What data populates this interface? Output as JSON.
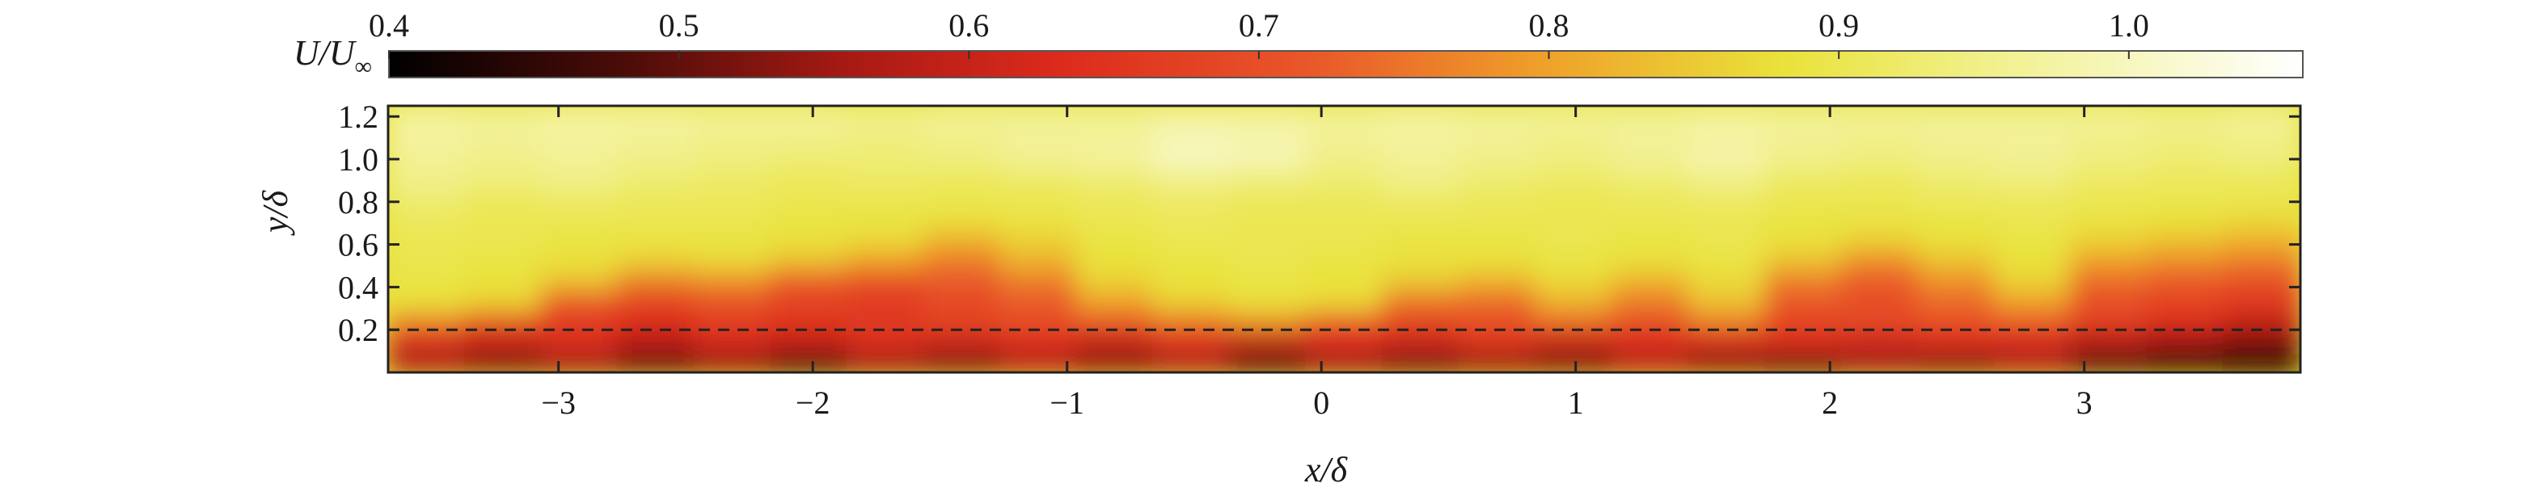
{
  "chart_data": {
    "type": "heatmap",
    "colorbar": {
      "label_main": "U/U",
      "label_sub": "∞",
      "range": [
        0.4,
        1.06
      ],
      "ticks": [
        0.4,
        0.5,
        0.6,
        0.7,
        0.8,
        0.9,
        1.0
      ],
      "tick_labels": [
        "0.4",
        "0.5",
        "0.6",
        "0.7",
        "0.8",
        "0.9",
        "1.0"
      ],
      "colormap": [
        {
          "v": 0.4,
          "color": "#000000"
        },
        {
          "v": 0.48,
          "color": "#4a0c08"
        },
        {
          "v": 0.56,
          "color": "#a91a14"
        },
        {
          "v": 0.63,
          "color": "#dc2a1c"
        },
        {
          "v": 0.72,
          "color": "#e9592a"
        },
        {
          "v": 0.8,
          "color": "#efa22a"
        },
        {
          "v": 0.88,
          "color": "#e9e23a"
        },
        {
          "v": 0.95,
          "color": "#f1f08a"
        },
        {
          "v": 1.06,
          "color": "#ffffff"
        }
      ]
    },
    "xlabel": "x/δ",
    "ylabel": "y/δ",
    "xlim": [
      -3.67,
      3.85
    ],
    "ylim": [
      0.0,
      1.25
    ],
    "xticks": [
      -3,
      -2,
      -1,
      0,
      1,
      2,
      3
    ],
    "xtick_labels": [
      "−3",
      "−2",
      "−1",
      "0",
      "1",
      "2",
      "3"
    ],
    "yticks": [
      0.2,
      0.4,
      0.6,
      0.8,
      1.0,
      1.2
    ],
    "ytick_labels": [
      "0.2",
      "0.4",
      "0.6",
      "0.8",
      "1.0",
      "1.2"
    ],
    "reference_line": {
      "y": 0.2,
      "style": "dashed",
      "color": "#222222"
    },
    "field": {
      "freestream_value": 0.9,
      "wall_value": 0.55,
      "interface_x": [
        -3.6,
        -3.3,
        -3.0,
        -2.7,
        -2.4,
        -2.1,
        -1.8,
        -1.5,
        -1.2,
        -0.9,
        -0.6,
        -0.3,
        0.0,
        0.3,
        0.6,
        0.9,
        1.2,
        1.5,
        1.8,
        2.1,
        2.4,
        2.7,
        3.0,
        3.3,
        3.6,
        3.85
      ],
      "interface_y": [
        0.27,
        0.25,
        0.35,
        0.45,
        0.42,
        0.45,
        0.52,
        0.6,
        0.52,
        0.38,
        0.28,
        0.25,
        0.22,
        0.33,
        0.36,
        0.28,
        0.4,
        0.3,
        0.5,
        0.55,
        0.47,
        0.38,
        0.55,
        0.5,
        0.6,
        0.62
      ],
      "rows": [
        [
          0.56,
          0.52,
          0.55,
          0.5,
          0.54,
          0.48,
          0.55,
          0.52,
          0.57,
          0.53,
          0.56,
          0.49,
          0.55,
          0.51,
          0.54,
          0.52,
          0.57,
          0.53,
          0.5,
          0.55,
          0.52,
          0.56,
          0.48,
          0.45,
          0.42
        ],
        [
          0.62,
          0.6,
          0.64,
          0.58,
          0.62,
          0.6,
          0.64,
          0.61,
          0.63,
          0.6,
          0.64,
          0.59,
          0.63,
          0.61,
          0.65,
          0.6,
          0.63,
          0.62,
          0.64,
          0.61,
          0.63,
          0.62,
          0.58,
          0.55,
          0.52
        ],
        [
          0.76,
          0.7,
          0.66,
          0.64,
          0.67,
          0.65,
          0.66,
          0.68,
          0.7,
          0.72,
          0.75,
          0.78,
          0.72,
          0.68,
          0.7,
          0.74,
          0.7,
          0.76,
          0.68,
          0.69,
          0.7,
          0.72,
          0.67,
          0.64,
          0.6
        ],
        [
          0.88,
          0.86,
          0.72,
          0.68,
          0.7,
          0.68,
          0.66,
          0.69,
          0.72,
          0.8,
          0.86,
          0.88,
          0.87,
          0.75,
          0.74,
          0.82,
          0.76,
          0.84,
          0.72,
          0.7,
          0.74,
          0.8,
          0.7,
          0.68,
          0.66
        ],
        [
          0.89,
          0.88,
          0.84,
          0.76,
          0.78,
          0.72,
          0.7,
          0.72,
          0.76,
          0.86,
          0.88,
          0.89,
          0.88,
          0.85,
          0.82,
          0.87,
          0.82,
          0.87,
          0.76,
          0.72,
          0.78,
          0.86,
          0.74,
          0.72,
          0.7
        ],
        [
          0.9,
          0.89,
          0.88,
          0.86,
          0.87,
          0.84,
          0.8,
          0.76,
          0.82,
          0.88,
          0.89,
          0.9,
          0.89,
          0.88,
          0.88,
          0.89,
          0.88,
          0.89,
          0.84,
          0.78,
          0.84,
          0.88,
          0.8,
          0.78,
          0.76
        ],
        [
          0.9,
          0.9,
          0.89,
          0.89,
          0.89,
          0.88,
          0.87,
          0.82,
          0.86,
          0.89,
          0.9,
          0.9,
          0.9,
          0.89,
          0.89,
          0.9,
          0.89,
          0.9,
          0.88,
          0.86,
          0.88,
          0.89,
          0.86,
          0.84,
          0.82
        ],
        [
          0.91,
          0.9,
          0.9,
          0.9,
          0.9,
          0.89,
          0.89,
          0.88,
          0.89,
          0.9,
          0.91,
          0.9,
          0.9,
          0.9,
          0.9,
          0.9,
          0.9,
          0.9,
          0.89,
          0.89,
          0.89,
          0.9,
          0.89,
          0.88,
          0.87
        ],
        [
          0.93,
          0.91,
          0.92,
          0.91,
          0.91,
          0.9,
          0.9,
          0.9,
          0.9,
          0.91,
          0.92,
          0.91,
          0.91,
          0.92,
          0.91,
          0.9,
          0.91,
          0.92,
          0.9,
          0.9,
          0.91,
          0.91,
          0.9,
          0.9,
          0.9
        ],
        [
          0.95,
          0.94,
          0.95,
          0.93,
          0.92,
          0.91,
          0.92,
          0.91,
          0.92,
          0.93,
          0.95,
          0.94,
          0.93,
          0.95,
          0.93,
          0.92,
          0.93,
          0.95,
          0.92,
          0.91,
          0.93,
          0.94,
          0.92,
          0.91,
          0.91
        ],
        [
          0.96,
          0.95,
          0.96,
          0.95,
          0.94,
          0.93,
          0.93,
          0.94,
          0.96,
          0.97,
          1.0,
          0.99,
          0.95,
          0.96,
          0.95,
          0.94,
          0.96,
          0.98,
          0.95,
          0.94,
          0.95,
          0.96,
          0.94,
          0.93,
          0.94
        ],
        [
          0.97,
          0.96,
          0.97,
          0.96,
          0.95,
          0.95,
          0.94,
          0.95,
          0.96,
          0.96,
          0.99,
          0.98,
          0.96,
          0.97,
          0.96,
          0.95,
          0.96,
          0.97,
          0.96,
          0.95,
          0.96,
          0.96,
          0.95,
          0.94,
          0.95
        ],
        [
          0.97,
          0.96,
          0.97,
          0.97,
          0.96,
          0.96,
          0.95,
          0.96,
          0.96,
          0.96,
          0.97,
          0.97,
          0.96,
          0.97,
          0.96,
          0.96,
          0.96,
          0.97,
          0.96,
          0.96,
          0.96,
          0.96,
          0.96,
          0.95,
          0.96
        ]
      ]
    }
  }
}
